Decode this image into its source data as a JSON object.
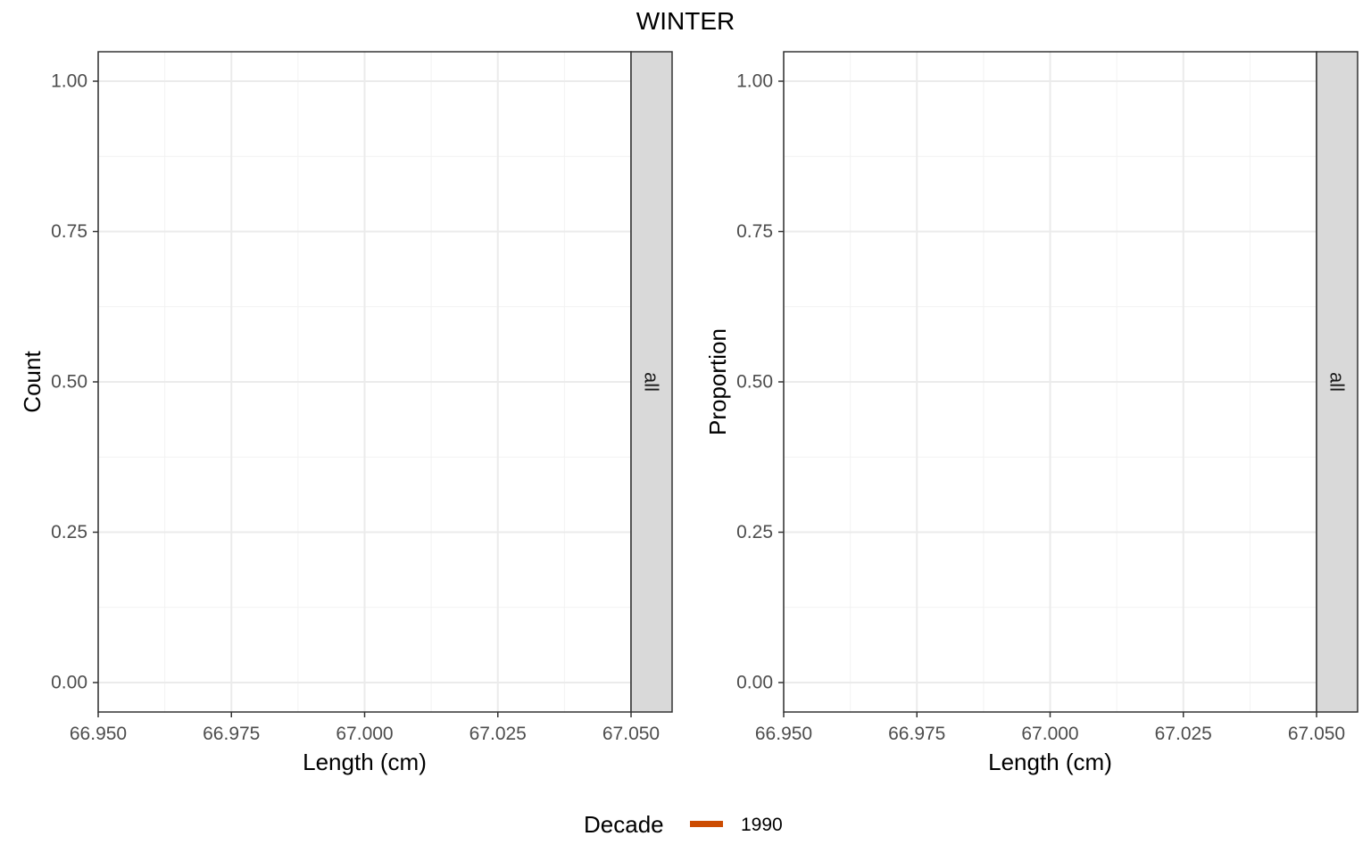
{
  "figure": {
    "title": "WINTER",
    "legend": {
      "title": "Decade",
      "position": "bottom",
      "items": [
        {
          "label": "1990",
          "color": "#cc4c02"
        }
      ]
    }
  },
  "chart_data": [
    {
      "type": "line",
      "facet_strip": "all",
      "xlabel": "Length (cm)",
      "ylabel": "Count",
      "xlim": [
        66.95,
        67.05
      ],
      "ylim": [
        0.0,
        1.0
      ],
      "x_ticks": [
        66.95,
        66.975,
        67.0,
        67.025,
        67.05
      ],
      "x_tick_labels": [
        "66.950",
        "66.975",
        "67.000",
        "67.025",
        "67.050"
      ],
      "y_ticks": [
        0.0,
        0.25,
        0.5,
        0.75,
        1.0
      ],
      "y_tick_labels": [
        "0.00",
        "0.25",
        "0.50",
        "0.75",
        "1.00"
      ],
      "grid": true,
      "series": [
        {
          "name": "1990",
          "color": "#cc4c02",
          "x": [],
          "y": []
        }
      ]
    },
    {
      "type": "line",
      "facet_strip": "all",
      "xlabel": "Length (cm)",
      "ylabel": "Proportion",
      "xlim": [
        66.95,
        67.05
      ],
      "ylim": [
        0.0,
        1.0
      ],
      "x_ticks": [
        66.95,
        66.975,
        67.0,
        67.025,
        67.05
      ],
      "x_tick_labels": [
        "66.950",
        "66.975",
        "67.000",
        "67.025",
        "67.050"
      ],
      "y_ticks": [
        0.0,
        0.25,
        0.5,
        0.75,
        1.0
      ],
      "y_tick_labels": [
        "0.00",
        "0.25",
        "0.50",
        "0.75",
        "1.00"
      ],
      "grid": true,
      "series": [
        {
          "name": "1990",
          "color": "#cc4c02",
          "x": [],
          "y": []
        }
      ]
    }
  ]
}
